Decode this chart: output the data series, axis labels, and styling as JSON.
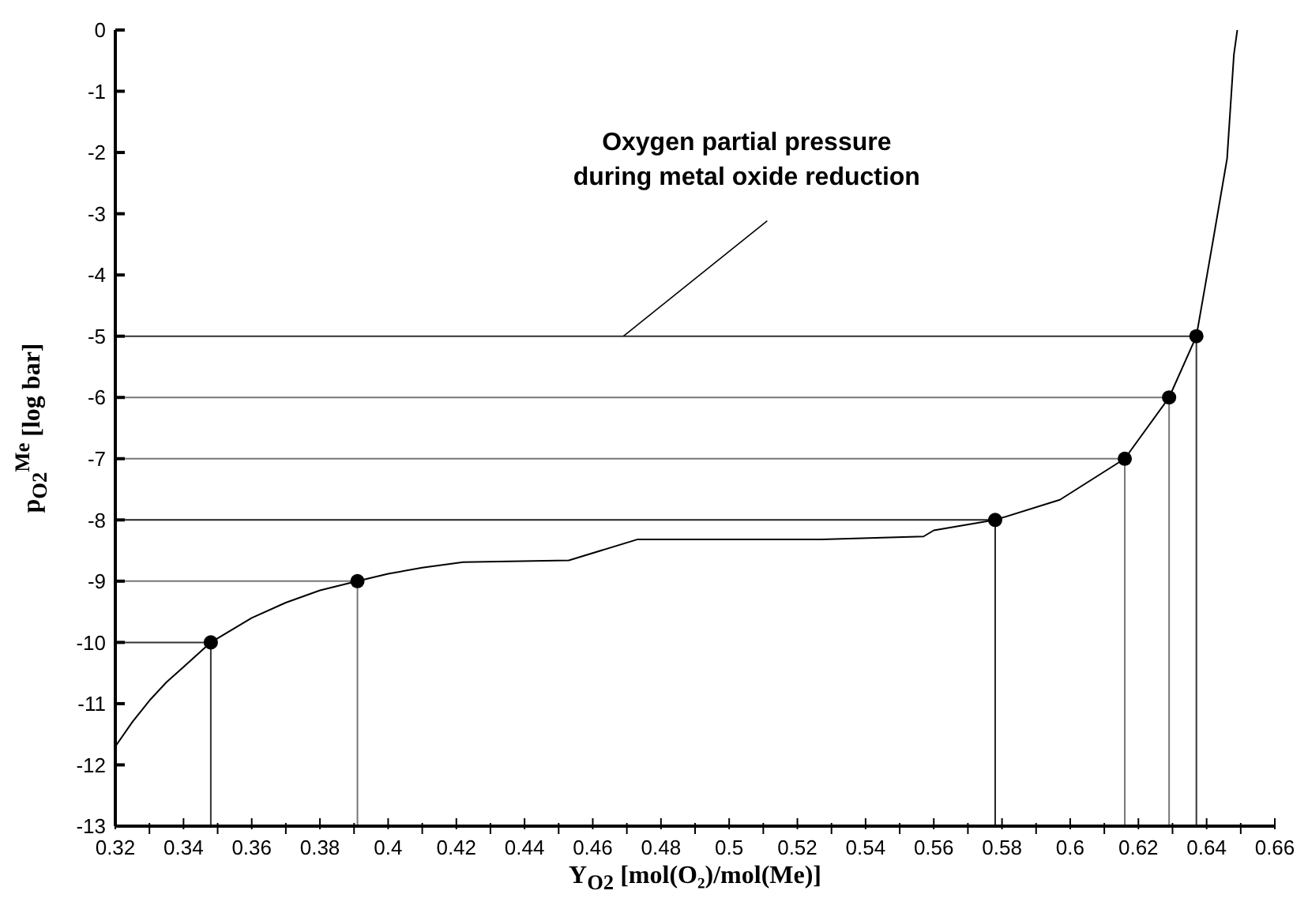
{
  "chart_data": {
    "type": "line",
    "xlabel": "Y$_{O2}$ [mol(O₂)/mol(Me)]",
    "ylabel": "p$_{O2}$$^{Me}$ [log bar]",
    "annotations": [
      {
        "text": "Oxygen partial pressure\nduring metal oxide reduction",
        "x": 0.469,
        "y": -5
      }
    ],
    "xlim": [
      0.32,
      0.66
    ],
    "ylim": [
      -13,
      0
    ],
    "xticks": [
      0.32,
      {
        "value": 0.33,
        "label": null
      },
      0.34,
      {
        "value": 0.35,
        "label": null
      },
      0.36,
      {
        "value": 0.37,
        "label": null
      },
      0.38,
      {
        "value": 0.39,
        "label": null
      },
      0.4,
      {
        "value": 0.41,
        "label": null
      },
      0.42,
      {
        "value": 0.43,
        "label": null
      },
      0.44,
      {
        "value": 0.45,
        "label": null
      },
      0.46,
      {
        "value": 0.47,
        "label": null
      },
      0.48,
      {
        "value": 0.49,
        "label": null
      },
      0.5,
      {
        "value": 0.51,
        "label": null
      },
      0.52,
      {
        "value": 0.53,
        "label": null
      },
      0.54,
      {
        "value": 0.55,
        "label": null
      },
      0.56,
      {
        "value": 0.57,
        "label": null
      },
      0.58,
      {
        "value": 0.59,
        "label": null
      },
      0.6,
      {
        "value": 0.61,
        "label": null
      },
      0.62,
      {
        "value": 0.63,
        "label": null
      },
      0.64,
      {
        "value": 0.65,
        "label": null
      },
      0.66
    ],
    "yticks": [
      0,
      -1,
      -2,
      -3,
      -4,
      -5,
      -6,
      -7,
      -8,
      -9,
      -10,
      -11,
      -12,
      -13
    ],
    "marker": "none",
    "line_style": "solid",
    "series": [
      {
        "color": "#000000",
        "x": [
          0.32,
          0.325,
          0.33,
          0.335,
          0.34,
          0.348,
          0.36,
          0.37,
          0.38,
          0.391,
          0.4,
          0.41,
          0.422,
          0.453,
          0.473,
          0.48,
          0.527,
          0.557,
          0.56,
          0.578,
          0.597,
          0.616,
          0.629,
          0.637,
          0.642,
          0.646,
          0.648,
          0.649
        ],
        "values": [
          -11.7,
          -11.3,
          -10.95,
          -10.65,
          -10.4,
          -10,
          -9.6,
          -9.35,
          -9.15,
          -9,
          -8.88,
          -8.78,
          -8.69,
          -8.66,
          -8.32,
          -8.32,
          -8.32,
          -8.27,
          -8.17,
          -8,
          -7.67,
          -7,
          -6,
          -5,
          -3.4,
          -2.1,
          -0.4,
          0
        ]
      },
      {
        "color": "#333333",
        "x": [
          0.32,
          0.348,
          0.348
        ],
        "values": [
          -10,
          -10,
          -13
        ]
      },
      {
        "color": "#777777",
        "x": [
          0.32,
          0.391,
          0.391
        ],
        "values": [
          -9,
          -9,
          -13
        ]
      },
      {
        "color": "#222222",
        "x": [
          0.32,
          0.578,
          0.578
        ],
        "values": [
          -8,
          -8,
          -13
        ]
      },
      {
        "color": "#777777",
        "x": [
          0.32,
          0.616,
          0.616
        ],
        "values": [
          -7,
          -7,
          -13
        ]
      },
      {
        "color": "#777777",
        "x": [
          0.32,
          0.629,
          0.629
        ],
        "values": [
          -6,
          -6,
          -13
        ]
      },
      {
        "color": "#333333",
        "x": [
          0.32,
          0.637,
          0.637
        ],
        "values": [
          -5,
          -5,
          -13
        ]
      },
      {
        "type": "scatter",
        "marker": "circle",
        "color": "#000000",
        "x": [
          0.348,
          0.391,
          0.578,
          0.616,
          0.629,
          0.637
        ],
        "values": [
          -10,
          -9,
          -8,
          -7,
          -6,
          -5
        ]
      }
    ]
  }
}
